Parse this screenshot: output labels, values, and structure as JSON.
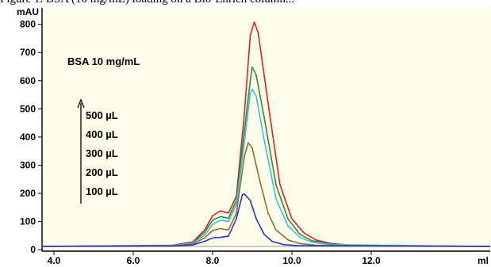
{
  "caption_fragment": "Figure 1. BSA (10 mg/mL) loading on a Bio-Enrich column...",
  "chart_data": {
    "type": "line",
    "title": "",
    "xlabel": "ml",
    "ylabel": "mAU",
    "xlim": [
      3.7,
      15.0
    ],
    "ylim": [
      -5,
      830
    ],
    "x_ticks": [
      4.0,
      6.0,
      8.0,
      10.0,
      12.0
    ],
    "x_tick_labels": [
      "4.0",
      "6.0",
      "8.0",
      "10.0",
      "12.0"
    ],
    "y_ticks": [
      0,
      100,
      200,
      300,
      400,
      500,
      600,
      700,
      800
    ],
    "y_tick_labels": [
      "0",
      "100",
      "200",
      "300",
      "400",
      "500",
      "600",
      "700",
      "800"
    ],
    "grid": false,
    "baseline": 12,
    "annotation": "BSA 10 mg/mL",
    "legend_labels": [
      "500 µL",
      "400 µL",
      "300 µL",
      "200 µL",
      "100 µL"
    ],
    "series": [
      {
        "color": "#e8201c",
        "points": [
          [
            3.7,
            12
          ],
          [
            7.0,
            16
          ],
          [
            7.5,
            28
          ],
          [
            7.8,
            70
          ],
          [
            8.0,
            120
          ],
          [
            8.2,
            138
          ],
          [
            8.4,
            130
          ],
          [
            8.6,
            190
          ],
          [
            8.8,
            480
          ],
          [
            8.95,
            760
          ],
          [
            9.05,
            808
          ],
          [
            9.15,
            770
          ],
          [
            9.4,
            520
          ],
          [
            9.7,
            230
          ],
          [
            10.0,
            110
          ],
          [
            10.3,
            60
          ],
          [
            10.6,
            35
          ],
          [
            11.0,
            22
          ],
          [
            11.5,
            16
          ],
          [
            12.5,
            13
          ],
          [
            15.0,
            12
          ]
        ]
      },
      {
        "color": "#2e8b3a",
        "points": [
          [
            3.7,
            12
          ],
          [
            7.0,
            15
          ],
          [
            7.5,
            25
          ],
          [
            7.8,
            62
          ],
          [
            8.0,
            105
          ],
          [
            8.2,
            118
          ],
          [
            8.4,
            112
          ],
          [
            8.6,
            175
          ],
          [
            8.8,
            420
          ],
          [
            8.95,
            600
          ],
          [
            9.0,
            648
          ],
          [
            9.1,
            620
          ],
          [
            9.3,
            470
          ],
          [
            9.6,
            230
          ],
          [
            9.9,
            110
          ],
          [
            10.2,
            55
          ],
          [
            10.5,
            32
          ],
          [
            11.0,
            20
          ],
          [
            11.5,
            15
          ],
          [
            15.0,
            12
          ]
        ]
      },
      {
        "color": "#36c3de",
        "points": [
          [
            3.7,
            12
          ],
          [
            7.0,
            15
          ],
          [
            7.5,
            23
          ],
          [
            7.8,
            52
          ],
          [
            8.0,
            90
          ],
          [
            8.2,
            105
          ],
          [
            8.4,
            100
          ],
          [
            8.6,
            160
          ],
          [
            8.8,
            380
          ],
          [
            8.95,
            555
          ],
          [
            9.0,
            570
          ],
          [
            9.1,
            545
          ],
          [
            9.3,
            390
          ],
          [
            9.6,
            180
          ],
          [
            9.9,
            85
          ],
          [
            10.2,
            44
          ],
          [
            10.5,
            27
          ],
          [
            11.0,
            18
          ],
          [
            15.0,
            12
          ]
        ]
      },
      {
        "color": "#9c6a2a",
        "points": [
          [
            3.7,
            12
          ],
          [
            7.0,
            14
          ],
          [
            7.5,
            20
          ],
          [
            7.8,
            42
          ],
          [
            8.0,
            68
          ],
          [
            8.2,
            75
          ],
          [
            8.4,
            70
          ],
          [
            8.6,
            130
          ],
          [
            8.8,
            330
          ],
          [
            8.9,
            380
          ],
          [
            9.0,
            360
          ],
          [
            9.2,
            240
          ],
          [
            9.4,
            130
          ],
          [
            9.6,
            70
          ],
          [
            9.9,
            35
          ],
          [
            10.2,
            22
          ],
          [
            10.6,
            16
          ],
          [
            15.0,
            12
          ]
        ]
      },
      {
        "color": "#2232d6",
        "points": [
          [
            3.7,
            12
          ],
          [
            7.0,
            13
          ],
          [
            7.5,
            17
          ],
          [
            7.8,
            30
          ],
          [
            8.0,
            42
          ],
          [
            8.2,
            44
          ],
          [
            8.4,
            48
          ],
          [
            8.6,
            110
          ],
          [
            8.75,
            195
          ],
          [
            8.8,
            198
          ],
          [
            8.95,
            175
          ],
          [
            9.1,
            110
          ],
          [
            9.3,
            55
          ],
          [
            9.5,
            30
          ],
          [
            9.8,
            18
          ],
          [
            10.2,
            14
          ],
          [
            15.0,
            12
          ]
        ]
      }
    ]
  }
}
